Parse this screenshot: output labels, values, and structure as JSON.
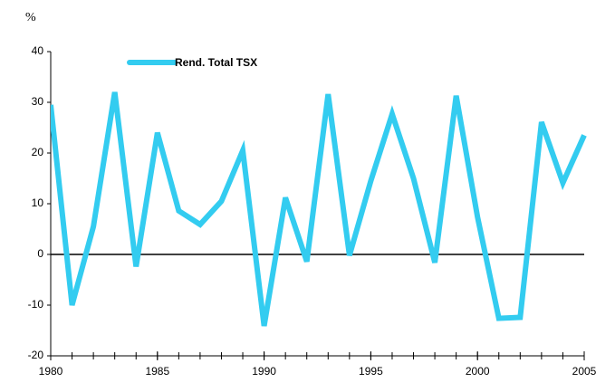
{
  "chart_data": {
    "type": "line",
    "y_label": "%",
    "x": [
      1980,
      1981,
      1982,
      1983,
      1984,
      1985,
      1986,
      1987,
      1988,
      1989,
      1990,
      1991,
      1992,
      1993,
      1994,
      1995,
      1996,
      1997,
      1998,
      1999,
      2000,
      2001,
      2002,
      2003,
      2004,
      2005
    ],
    "series": [
      {
        "name": "Rend. Total TSX",
        "color": "#33ccf0",
        "values": [
          29.5,
          -10,
          5.5,
          32,
          -2.4,
          24,
          8.6,
          5.9,
          10.5,
          20.5,
          -14.1,
          11.2,
          -1.4,
          31.6,
          -0.2,
          14.5,
          27.7,
          15,
          -1.6,
          31.3,
          7.4,
          -12.6,
          -12.4,
          26.1,
          14.1,
          23.5
        ]
      }
    ],
    "xlim": [
      1980,
      2005
    ],
    "xticks": [
      1980,
      1985,
      1990,
      1995,
      2000,
      2005
    ],
    "ylim": [
      -20,
      40
    ],
    "yticks": [
      -20,
      -10,
      0,
      10,
      20,
      30,
      40
    ],
    "legend": "upper left"
  }
}
